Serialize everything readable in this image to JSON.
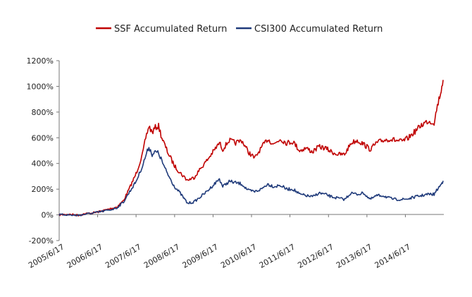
{
  "chart_data": {
    "type": "line",
    "title": "",
    "xlabel": "",
    "ylabel": "",
    "ylim": [
      -200,
      1200
    ],
    "y_tick_step": 200,
    "y_tick_labels": [
      "-200%",
      "0%",
      "200%",
      "400%",
      "600%",
      "800%",
      "1000%",
      "1200%"
    ],
    "x_range": [
      "2005-06-17",
      "2015-06-17"
    ],
    "x_tick_labels": [
      "2005/6/17",
      "2006/6/17",
      "2007/6/17",
      "2008/6/17",
      "2009/6/17",
      "2010/6/17",
      "2011/6/17",
      "2012/6/17",
      "2013/6/17",
      "2014/6/17"
    ],
    "grid": false,
    "legend_position": "top-center",
    "series": [
      {
        "name": "SSF Accumulated Return",
        "color": "#c00000",
        "points": [
          [
            "2005-06-17",
            0
          ],
          [
            "2005-08-17",
            4
          ],
          [
            "2005-10-17",
            2
          ],
          [
            "2005-12-17",
            -2
          ],
          [
            "2006-02-17",
            8
          ],
          [
            "2006-04-17",
            14
          ],
          [
            "2006-06-17",
            22
          ],
          [
            "2006-08-17",
            35
          ],
          [
            "2006-10-17",
            48
          ],
          [
            "2006-12-17",
            62
          ],
          [
            "2007-02-17",
            110
          ],
          [
            "2007-04-17",
            210
          ],
          [
            "2007-06-17",
            320
          ],
          [
            "2007-08-17",
            470
          ],
          [
            "2007-09-17",
            600
          ],
          [
            "2007-10-17",
            690
          ],
          [
            "2007-11-17",
            640
          ],
          [
            "2007-12-17",
            680
          ],
          [
            "2008-01-17",
            690
          ],
          [
            "2008-02-17",
            600
          ],
          [
            "2008-03-17",
            540
          ],
          [
            "2008-04-17",
            480
          ],
          [
            "2008-06-17",
            380
          ],
          [
            "2008-08-17",
            320
          ],
          [
            "2008-10-17",
            270
          ],
          [
            "2008-12-17",
            290
          ],
          [
            "2009-02-17",
            360
          ],
          [
            "2009-04-17",
            420
          ],
          [
            "2009-06-17",
            490
          ],
          [
            "2009-08-17",
            560
          ],
          [
            "2009-09-17",
            510
          ],
          [
            "2009-11-17",
            580
          ],
          [
            "2010-01-17",
            560
          ],
          [
            "2010-03-17",
            580
          ],
          [
            "2010-05-17",
            490
          ],
          [
            "2010-07-17",
            440
          ],
          [
            "2010-09-17",
            520
          ],
          [
            "2010-11-17",
            590
          ],
          [
            "2011-01-17",
            550
          ],
          [
            "2011-03-17",
            590
          ],
          [
            "2011-05-17",
            560
          ],
          [
            "2011-07-17",
            570
          ],
          [
            "2011-09-17",
            500
          ],
          [
            "2011-11-17",
            520
          ],
          [
            "2012-01-17",
            490
          ],
          [
            "2012-03-17",
            530
          ],
          [
            "2012-05-17",
            520
          ],
          [
            "2012-07-17",
            490
          ],
          [
            "2012-09-17",
            470
          ],
          [
            "2012-11-17",
            470
          ],
          [
            "2013-01-17",
            560
          ],
          [
            "2013-03-17",
            580
          ],
          [
            "2013-05-17",
            550
          ],
          [
            "2013-07-17",
            510
          ],
          [
            "2013-09-17",
            560
          ],
          [
            "2013-11-17",
            580
          ],
          [
            "2014-01-17",
            590
          ],
          [
            "2014-03-17",
            580
          ],
          [
            "2014-05-17",
            570
          ],
          [
            "2014-07-17",
            600
          ],
          [
            "2014-09-17",
            650
          ],
          [
            "2014-11-17",
            700
          ],
          [
            "2015-01-17",
            730
          ],
          [
            "2015-03-17",
            720
          ],
          [
            "2015-04-17",
            850
          ],
          [
            "2015-05-17",
            950
          ],
          [
            "2015-06-10",
            1050
          ]
        ]
      },
      {
        "name": "CSI300 Accumulated Return",
        "color": "#1f3a7a",
        "points": [
          [
            "2005-06-17",
            0
          ],
          [
            "2005-08-17",
            2
          ],
          [
            "2005-10-17",
            -2
          ],
          [
            "2005-12-17",
            -4
          ],
          [
            "2006-02-17",
            5
          ],
          [
            "2006-04-17",
            12
          ],
          [
            "2006-06-17",
            20
          ],
          [
            "2006-08-17",
            30
          ],
          [
            "2006-10-17",
            40
          ],
          [
            "2006-12-17",
            55
          ],
          [
            "2007-02-17",
            100
          ],
          [
            "2007-04-17",
            180
          ],
          [
            "2007-06-17",
            260
          ],
          [
            "2007-08-17",
            380
          ],
          [
            "2007-09-17",
            460
          ],
          [
            "2007-10-17",
            530
          ],
          [
            "2007-11-17",
            470
          ],
          [
            "2007-12-17",
            490
          ],
          [
            "2008-01-17",
            480
          ],
          [
            "2008-02-17",
            420
          ],
          [
            "2008-03-17",
            360
          ],
          [
            "2008-04-17",
            310
          ],
          [
            "2008-06-17",
            220
          ],
          [
            "2008-08-17",
            160
          ],
          [
            "2008-10-17",
            90
          ],
          [
            "2008-12-17",
            100
          ],
          [
            "2009-02-17",
            140
          ],
          [
            "2009-04-17",
            180
          ],
          [
            "2009-06-17",
            230
          ],
          [
            "2009-08-17",
            280
          ],
          [
            "2009-09-17",
            220
          ],
          [
            "2009-11-17",
            260
          ],
          [
            "2010-01-17",
            250
          ],
          [
            "2010-03-17",
            240
          ],
          [
            "2010-05-17",
            190
          ],
          [
            "2010-07-17",
            180
          ],
          [
            "2010-09-17",
            200
          ],
          [
            "2010-11-17",
            240
          ],
          [
            "2011-01-17",
            220
          ],
          [
            "2011-03-17",
            230
          ],
          [
            "2011-05-17",
            200
          ],
          [
            "2011-07-17",
            200
          ],
          [
            "2011-09-17",
            160
          ],
          [
            "2011-11-17",
            150
          ],
          [
            "2012-01-17",
            140
          ],
          [
            "2012-03-17",
            170
          ],
          [
            "2012-05-17",
            160
          ],
          [
            "2012-07-17",
            140
          ],
          [
            "2012-09-17",
            130
          ],
          [
            "2012-11-17",
            120
          ],
          [
            "2013-01-17",
            170
          ],
          [
            "2013-03-17",
            160
          ],
          [
            "2013-05-17",
            170
          ],
          [
            "2013-07-17",
            120
          ],
          [
            "2013-09-17",
            150
          ],
          [
            "2013-11-17",
            150
          ],
          [
            "2014-01-17",
            130
          ],
          [
            "2014-03-17",
            120
          ],
          [
            "2014-05-17",
            120
          ],
          [
            "2014-07-17",
            125
          ],
          [
            "2014-09-17",
            140
          ],
          [
            "2014-11-17",
            150
          ],
          [
            "2015-01-17",
            160
          ],
          [
            "2015-03-17",
            160
          ],
          [
            "2015-04-17",
            200
          ],
          [
            "2015-05-17",
            230
          ],
          [
            "2015-06-10",
            265
          ]
        ]
      }
    ]
  }
}
